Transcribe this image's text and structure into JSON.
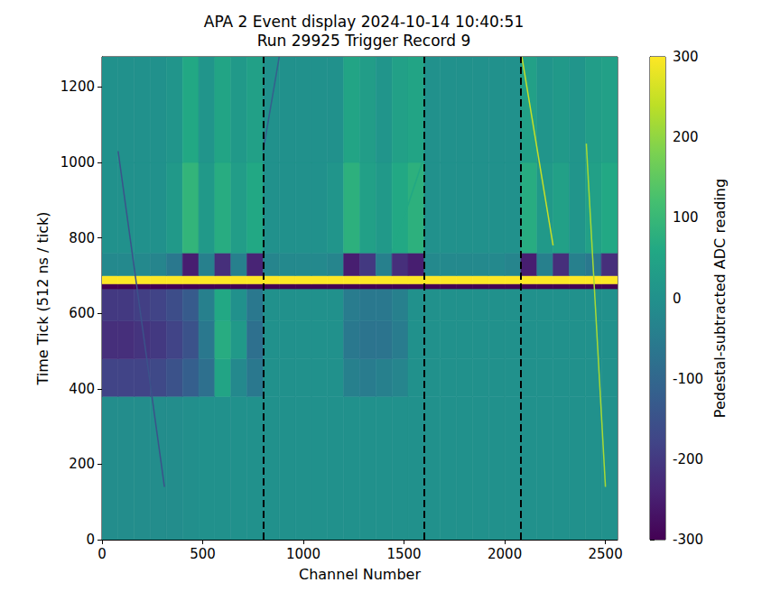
{
  "chart_data": {
    "type": "heatmap",
    "title": "APA 2 Event display 2024-10-14 10:40:51\nRun 29925 Trigger Record 9",
    "x_label": "Channel Number",
    "y_label": "Time Tick (512 ns / tick)",
    "xlim": [
      0,
      2560
    ],
    "xticks": [
      0,
      500,
      1000,
      1500,
      2000,
      2500
    ],
    "ylim": [
      0,
      1280
    ],
    "yticks": [
      0,
      200,
      400,
      600,
      800,
      1000,
      1200
    ],
    "grid": false,
    "x_edges": [
      0,
      80,
      160,
      240,
      320,
      400,
      480,
      560,
      640,
      720,
      800,
      880,
      960,
      1040,
      1120,
      1200,
      1280,
      1360,
      1440,
      1520,
      1600,
      1680,
      1760,
      1840,
      1920,
      2000,
      2080,
      2160,
      2240,
      2320,
      2400,
      2480,
      2560
    ],
    "y_edges": [
      0,
      380,
      480,
      580,
      665,
      678,
      700,
      760,
      1000,
      1280
    ],
    "cells": [
      [
        -10,
        -10,
        -10,
        -10,
        -10,
        -5,
        0,
        0,
        0,
        0,
        0,
        0,
        0,
        0,
        0,
        0,
        0,
        0,
        0,
        0,
        0,
        0,
        0,
        0,
        0,
        0,
        0,
        0,
        0,
        0,
        0,
        0
      ],
      [
        -180,
        -180,
        -180,
        -170,
        -150,
        -120,
        -80,
        50,
        -20,
        -60,
        0,
        0,
        0,
        0,
        0,
        -40,
        -50,
        -40,
        -30,
        0,
        0,
        0,
        0,
        0,
        0,
        0,
        0,
        0,
        0,
        0,
        0,
        0
      ],
      [
        -220,
        -220,
        -210,
        -200,
        -180,
        -150,
        -60,
        70,
        20,
        -80,
        0,
        0,
        0,
        0,
        0,
        -60,
        -70,
        -70,
        -50,
        0,
        0,
        0,
        0,
        0,
        0,
        0,
        0,
        0,
        0,
        0,
        0,
        0
      ],
      [
        -200,
        -200,
        -190,
        -180,
        -160,
        -130,
        -40,
        60,
        0,
        -60,
        0,
        0,
        0,
        0,
        0,
        -50,
        -60,
        -60,
        -40,
        0,
        0,
        0,
        0,
        0,
        0,
        0,
        0,
        0,
        0,
        0,
        0,
        0
      ],
      [
        -300,
        -300,
        -300,
        -300,
        -300,
        -300,
        -300,
        -300,
        -300,
        -300,
        -300,
        -300,
        -300,
        -300,
        -300,
        -300,
        -300,
        -300,
        -300,
        -300,
        -300,
        -300,
        -300,
        -300,
        -300,
        -300,
        -300,
        -300,
        -300,
        -300,
        -300,
        -300
      ],
      [
        300,
        300,
        300,
        300,
        300,
        300,
        300,
        300,
        300,
        300,
        300,
        300,
        300,
        300,
        300,
        300,
        300,
        300,
        300,
        300,
        300,
        300,
        300,
        300,
        300,
        300,
        300,
        300,
        300,
        300,
        300,
        300
      ],
      [
        -20,
        -20,
        -20,
        -30,
        -60,
        -250,
        -40,
        -220,
        -40,
        -240,
        -30,
        -20,
        -20,
        -20,
        -30,
        -250,
        -200,
        -40,
        -220,
        -250,
        -20,
        -20,
        -20,
        -20,
        -20,
        -30,
        -250,
        -40,
        -220,
        -40,
        -60,
        -220
      ],
      [
        0,
        0,
        0,
        0,
        20,
        90,
        20,
        70,
        30,
        60,
        0,
        0,
        0,
        0,
        10,
        80,
        40,
        20,
        60,
        80,
        0,
        0,
        0,
        0,
        0,
        0,
        70,
        20,
        40,
        10,
        40,
        60
      ],
      [
        0,
        0,
        0,
        0,
        10,
        60,
        10,
        50,
        20,
        40,
        0,
        0,
        0,
        0,
        0,
        50,
        30,
        10,
        40,
        50,
        0,
        0,
        0,
        0,
        0,
        0,
        40,
        10,
        20,
        10,
        30,
        40
      ]
    ],
    "tracks": [
      {
        "x": [
          80,
          310
        ],
        "y": [
          1030,
          140
        ],
        "value": -150
      },
      {
        "x": [
          800,
          880
        ],
        "y": [
          1030,
          1280
        ],
        "value": -120
      },
      {
        "x": [
          1440,
          1590
        ],
        "y": [
          760,
          1000
        ],
        "value": 60
      },
      {
        "x": [
          2085,
          2240
        ],
        "y": [
          1280,
          780
        ],
        "value": 250
      },
      {
        "x": [
          2405,
          2500
        ],
        "y": [
          1050,
          140
        ],
        "value": 220
      }
    ],
    "vlines": [
      800,
      1600,
      2080
    ],
    "colorbar": {
      "label": "Pedestal-subtracted ADC reading",
      "range": [
        -300,
        300
      ],
      "ticks": [
        -300,
        -200,
        -100,
        0,
        100,
        200,
        300
      ]
    }
  }
}
